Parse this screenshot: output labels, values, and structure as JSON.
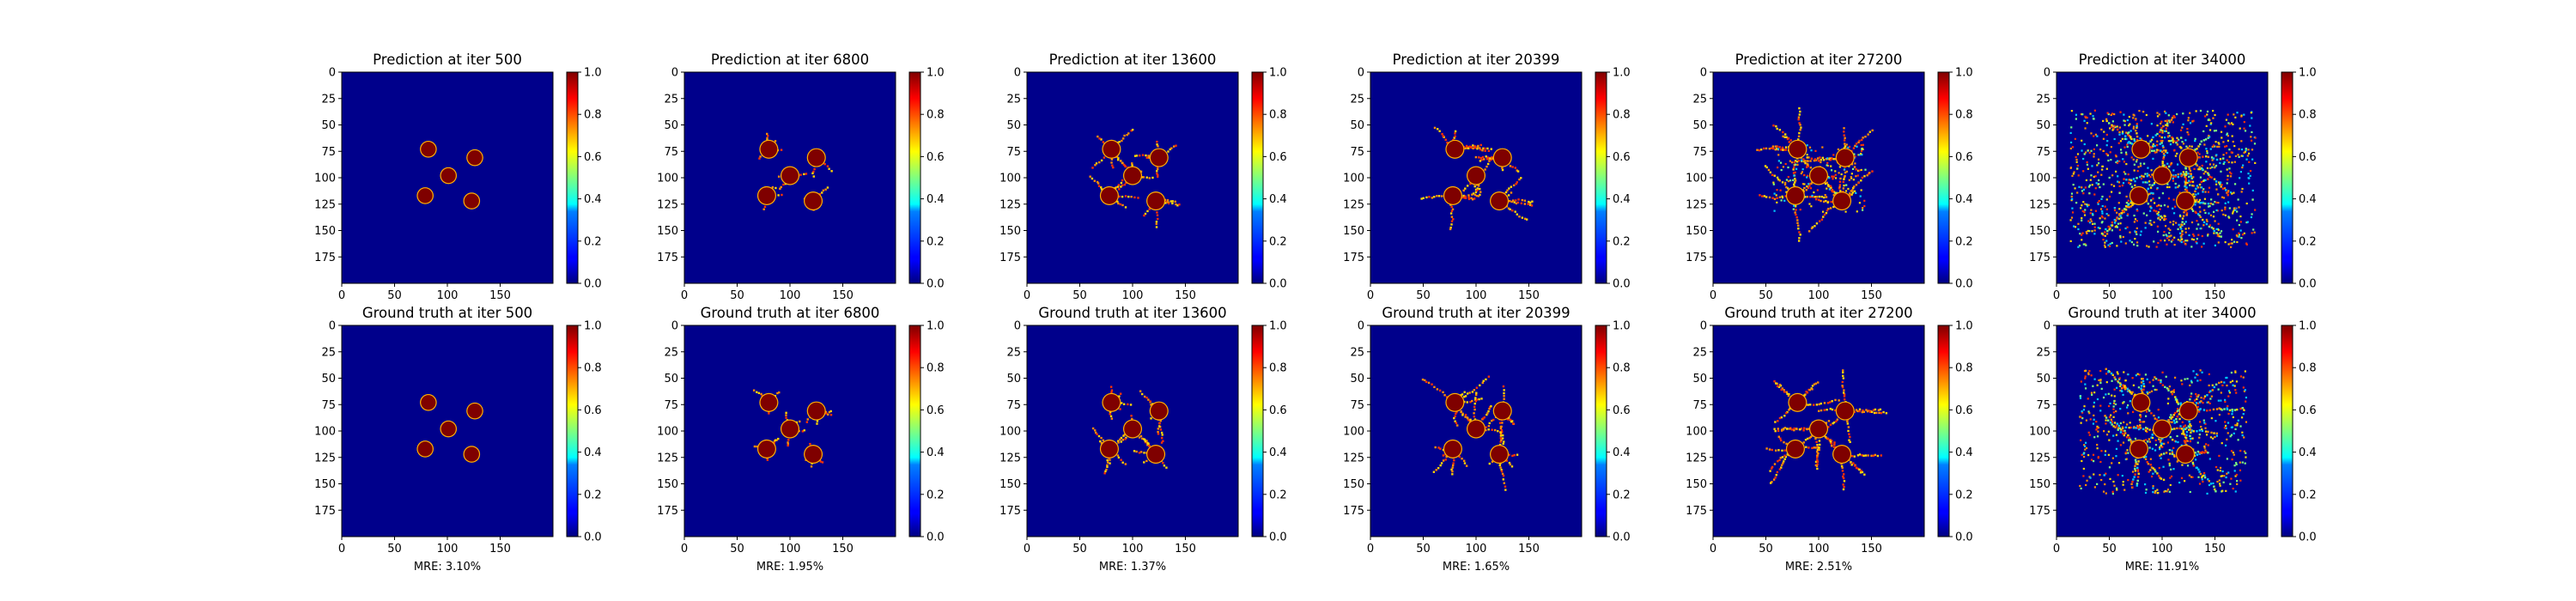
{
  "figure": {
    "colormap": "jet",
    "background_color": "#00008b",
    "blob_color": "#7f0000",
    "branch_colors": [
      "#ff8c00",
      "#ffd700",
      "#ff3300",
      "#00c8ff",
      "#7fff7f"
    ]
  },
  "chart_data": [
    {
      "type": "heatmap",
      "row": "prediction",
      "iteration": 500,
      "title": "Prediction at iter 500",
      "xlim": [
        0,
        200
      ],
      "ylim": [
        200,
        0
      ],
      "xticks": [
        "0",
        "50",
        "100",
        "150"
      ],
      "yticks": [
        "0",
        "25",
        "50",
        "75",
        "100",
        "125",
        "150",
        "175"
      ],
      "colorbar": {
        "range": [
          0.0,
          1.0
        ],
        "ticks": [
          "0.0",
          "0.2",
          "0.4",
          "0.6",
          "0.8",
          "1.0"
        ]
      },
      "grains": [
        {
          "x": 82,
          "y": 73,
          "r": 7
        },
        {
          "x": 101,
          "y": 98,
          "r": 7
        },
        {
          "x": 126,
          "y": 81,
          "r": 7
        },
        {
          "x": 79,
          "y": 117,
          "r": 7
        },
        {
          "x": 123,
          "y": 122,
          "r": 7
        }
      ],
      "growth": 0.0,
      "noise": 0.0
    },
    {
      "type": "heatmap",
      "row": "prediction",
      "iteration": 6800,
      "title": "Prediction at iter 6800",
      "xlim": [
        0,
        200
      ],
      "ylim": [
        200,
        0
      ],
      "xticks": [
        "0",
        "50",
        "100",
        "150"
      ],
      "yticks": [
        "0",
        "25",
        "50",
        "75",
        "100",
        "125",
        "150",
        "175"
      ],
      "colorbar": {
        "range": [
          0.0,
          1.0
        ],
        "ticks": [
          "0.0",
          "0.2",
          "0.4",
          "0.6",
          "0.8",
          "1.0"
        ]
      },
      "grains": [
        {
          "x": 80,
          "y": 73,
          "r": 8
        },
        {
          "x": 100,
          "y": 98,
          "r": 8
        },
        {
          "x": 125,
          "y": 81,
          "r": 8
        },
        {
          "x": 78,
          "y": 117,
          "r": 8
        },
        {
          "x": 122,
          "y": 122,
          "r": 8
        }
      ],
      "growth": 0.3,
      "noise": 0.0
    },
    {
      "type": "heatmap",
      "row": "prediction",
      "iteration": 13600,
      "title": "Prediction at iter 13600",
      "xlim": [
        0,
        200
      ],
      "ylim": [
        200,
        0
      ],
      "xticks": [
        "0",
        "50",
        "100",
        "150"
      ],
      "yticks": [
        "0",
        "25",
        "50",
        "75",
        "100",
        "125",
        "150",
        "175"
      ],
      "colorbar": {
        "range": [
          0.0,
          1.0
        ],
        "ticks": [
          "0.0",
          "0.2",
          "0.4",
          "0.6",
          "0.8",
          "1.0"
        ]
      },
      "grains": [
        {
          "x": 80,
          "y": 73,
          "r": 8
        },
        {
          "x": 100,
          "y": 98,
          "r": 8
        },
        {
          "x": 125,
          "y": 81,
          "r": 8
        },
        {
          "x": 78,
          "y": 117,
          "r": 8
        },
        {
          "x": 122,
          "y": 122,
          "r": 8
        }
      ],
      "growth": 0.5,
      "noise": 0.0
    },
    {
      "type": "heatmap",
      "row": "prediction",
      "iteration": 20399,
      "title": "Prediction at iter 20399",
      "xlim": [
        0,
        200
      ],
      "ylim": [
        200,
        0
      ],
      "xticks": [
        "0",
        "50",
        "100",
        "150"
      ],
      "yticks": [
        "0",
        "25",
        "50",
        "75",
        "100",
        "125",
        "150",
        "175"
      ],
      "colorbar": {
        "range": [
          0.0,
          1.0
        ],
        "ticks": [
          "0.0",
          "0.2",
          "0.4",
          "0.6",
          "0.8",
          "1.0"
        ]
      },
      "grains": [
        {
          "x": 80,
          "y": 73,
          "r": 8
        },
        {
          "x": 100,
          "y": 98,
          "r": 8
        },
        {
          "x": 125,
          "y": 81,
          "r": 8
        },
        {
          "x": 78,
          "y": 117,
          "r": 8
        },
        {
          "x": 122,
          "y": 122,
          "r": 8
        }
      ],
      "growth": 0.7,
      "noise": 0.0
    },
    {
      "type": "heatmap",
      "row": "prediction",
      "iteration": 27200,
      "title": "Prediction at iter 27200",
      "xlim": [
        0,
        200
      ],
      "ylim": [
        200,
        0
      ],
      "xticks": [
        "0",
        "50",
        "100",
        "150"
      ],
      "yticks": [
        "0",
        "25",
        "50",
        "75",
        "100",
        "125",
        "150",
        "175"
      ],
      "colorbar": {
        "range": [
          0.0,
          1.0
        ],
        "ticks": [
          "0.0",
          "0.2",
          "0.4",
          "0.6",
          "0.8",
          "1.0"
        ]
      },
      "grains": [
        {
          "x": 80,
          "y": 73,
          "r": 8
        },
        {
          "x": 100,
          "y": 98,
          "r": 8
        },
        {
          "x": 125,
          "y": 81,
          "r": 8
        },
        {
          "x": 78,
          "y": 117,
          "r": 8
        },
        {
          "x": 122,
          "y": 122,
          "r": 8
        }
      ],
      "growth": 0.85,
      "noise": 0.2
    },
    {
      "type": "heatmap",
      "row": "prediction",
      "iteration": 34000,
      "title": "Prediction at iter 34000",
      "xlim": [
        0,
        200
      ],
      "ylim": [
        200,
        0
      ],
      "xticks": [
        "0",
        "50",
        "100",
        "150"
      ],
      "yticks": [
        "0",
        "25",
        "50",
        "75",
        "100",
        "125",
        "150",
        "175"
      ],
      "colorbar": {
        "range": [
          0.0,
          1.0
        ],
        "ticks": [
          "0.0",
          "0.2",
          "0.4",
          "0.6",
          "0.8",
          "1.0"
        ]
      },
      "grains": [
        {
          "x": 80,
          "y": 73,
          "r": 8
        },
        {
          "x": 100,
          "y": 98,
          "r": 8
        },
        {
          "x": 125,
          "y": 81,
          "r": 8
        },
        {
          "x": 78,
          "y": 117,
          "r": 8
        },
        {
          "x": 122,
          "y": 122,
          "r": 8
        }
      ],
      "growth": 1.0,
      "noise": 1.0
    },
    {
      "type": "heatmap",
      "row": "ground_truth",
      "iteration": 500,
      "title": "Ground truth at iter 500",
      "xlim": [
        0,
        200
      ],
      "ylim": [
        200,
        0
      ],
      "xticks": [
        "0",
        "50",
        "100",
        "150"
      ],
      "yticks": [
        "0",
        "25",
        "50",
        "75",
        "100",
        "125",
        "150",
        "175"
      ],
      "colorbar": {
        "range": [
          0.0,
          1.0
        ],
        "ticks": [
          "0.0",
          "0.2",
          "0.4",
          "0.6",
          "0.8",
          "1.0"
        ]
      },
      "grains": [
        {
          "x": 82,
          "y": 73,
          "r": 7
        },
        {
          "x": 101,
          "y": 98,
          "r": 7
        },
        {
          "x": 126,
          "y": 81,
          "r": 7
        },
        {
          "x": 79,
          "y": 117,
          "r": 7
        },
        {
          "x": 123,
          "y": 122,
          "r": 7
        }
      ],
      "growth": 0.0,
      "noise": 0.0,
      "mre": "MRE: 3.10%"
    },
    {
      "type": "heatmap",
      "row": "ground_truth",
      "iteration": 6800,
      "title": "Ground truth at iter 6800",
      "xlim": [
        0,
        200
      ],
      "ylim": [
        200,
        0
      ],
      "xticks": [
        "0",
        "50",
        "100",
        "150"
      ],
      "yticks": [
        "0",
        "25",
        "50",
        "75",
        "100",
        "125",
        "150",
        "175"
      ],
      "colorbar": {
        "range": [
          0.0,
          1.0
        ],
        "ticks": [
          "0.0",
          "0.2",
          "0.4",
          "0.6",
          "0.8",
          "1.0"
        ]
      },
      "grains": [
        {
          "x": 80,
          "y": 73,
          "r": 8
        },
        {
          "x": 100,
          "y": 98,
          "r": 8
        },
        {
          "x": 125,
          "y": 81,
          "r": 8
        },
        {
          "x": 78,
          "y": 117,
          "r": 8
        },
        {
          "x": 122,
          "y": 122,
          "r": 8
        }
      ],
      "growth": 0.3,
      "noise": 0.0,
      "mre": "MRE: 1.95%"
    },
    {
      "type": "heatmap",
      "row": "ground_truth",
      "iteration": 13600,
      "title": "Ground truth at iter 13600",
      "xlim": [
        0,
        200
      ],
      "ylim": [
        200,
        0
      ],
      "xticks": [
        "0",
        "50",
        "100",
        "150"
      ],
      "yticks": [
        "0",
        "25",
        "50",
        "75",
        "100",
        "125",
        "150",
        "175"
      ],
      "colorbar": {
        "range": [
          0.0,
          1.0
        ],
        "ticks": [
          "0.0",
          "0.2",
          "0.4",
          "0.6",
          "0.8",
          "1.0"
        ]
      },
      "grains": [
        {
          "x": 80,
          "y": 73,
          "r": 8
        },
        {
          "x": 100,
          "y": 98,
          "r": 8
        },
        {
          "x": 125,
          "y": 81,
          "r": 8
        },
        {
          "x": 78,
          "y": 117,
          "r": 8
        },
        {
          "x": 122,
          "y": 122,
          "r": 8
        }
      ],
      "growth": 0.5,
      "noise": 0.0,
      "mre": "MRE: 1.37%"
    },
    {
      "type": "heatmap",
      "row": "ground_truth",
      "iteration": 20399,
      "title": "Ground truth at iter 20399",
      "xlim": [
        0,
        200
      ],
      "ylim": [
        200,
        0
      ],
      "xticks": [
        "0",
        "50",
        "100",
        "150"
      ],
      "yticks": [
        "0",
        "25",
        "50",
        "75",
        "100",
        "125",
        "150",
        "175"
      ],
      "colorbar": {
        "range": [
          0.0,
          1.0
        ],
        "ticks": [
          "0.0",
          "0.2",
          "0.4",
          "0.6",
          "0.8",
          "1.0"
        ]
      },
      "grains": [
        {
          "x": 80,
          "y": 73,
          "r": 8
        },
        {
          "x": 100,
          "y": 98,
          "r": 8
        },
        {
          "x": 125,
          "y": 81,
          "r": 8
        },
        {
          "x": 78,
          "y": 117,
          "r": 8
        },
        {
          "x": 122,
          "y": 122,
          "r": 8
        }
      ],
      "growth": 0.7,
      "noise": 0.0,
      "mre": "MRE: 1.65%"
    },
    {
      "type": "heatmap",
      "row": "ground_truth",
      "iteration": 27200,
      "title": "Ground truth at iter 27200",
      "xlim": [
        0,
        200
      ],
      "ylim": [
        200,
        0
      ],
      "xticks": [
        "0",
        "50",
        "100",
        "150"
      ],
      "yticks": [
        "0",
        "25",
        "50",
        "75",
        "100",
        "125",
        "150",
        "175"
      ],
      "colorbar": {
        "range": [
          0.0,
          1.0
        ],
        "ticks": [
          "0.0",
          "0.2",
          "0.4",
          "0.6",
          "0.8",
          "1.0"
        ]
      },
      "grains": [
        {
          "x": 80,
          "y": 73,
          "r": 8
        },
        {
          "x": 100,
          "y": 98,
          "r": 8
        },
        {
          "x": 125,
          "y": 81,
          "r": 8
        },
        {
          "x": 78,
          "y": 117,
          "r": 8
        },
        {
          "x": 122,
          "y": 122,
          "r": 8
        }
      ],
      "growth": 0.85,
      "noise": 0.0,
      "mre": "MRE: 2.51%"
    },
    {
      "type": "heatmap",
      "row": "ground_truth",
      "iteration": 34000,
      "title": "Ground truth at iter 34000",
      "xlim": [
        0,
        200
      ],
      "ylim": [
        200,
        0
      ],
      "xticks": [
        "0",
        "50",
        "100",
        "150"
      ],
      "yticks": [
        "0",
        "25",
        "50",
        "75",
        "100",
        "125",
        "150",
        "175"
      ],
      "colorbar": {
        "range": [
          0.0,
          1.0
        ],
        "ticks": [
          "0.0",
          "0.2",
          "0.4",
          "0.6",
          "0.8",
          "1.0"
        ]
      },
      "grains": [
        {
          "x": 80,
          "y": 73,
          "r": 8
        },
        {
          "x": 100,
          "y": 98,
          "r": 8
        },
        {
          "x": 125,
          "y": 81,
          "r": 8
        },
        {
          "x": 78,
          "y": 117,
          "r": 8
        },
        {
          "x": 122,
          "y": 122,
          "r": 8
        }
      ],
      "growth": 1.0,
      "noise": 0.6,
      "mre": "MRE: 11.91%"
    }
  ]
}
